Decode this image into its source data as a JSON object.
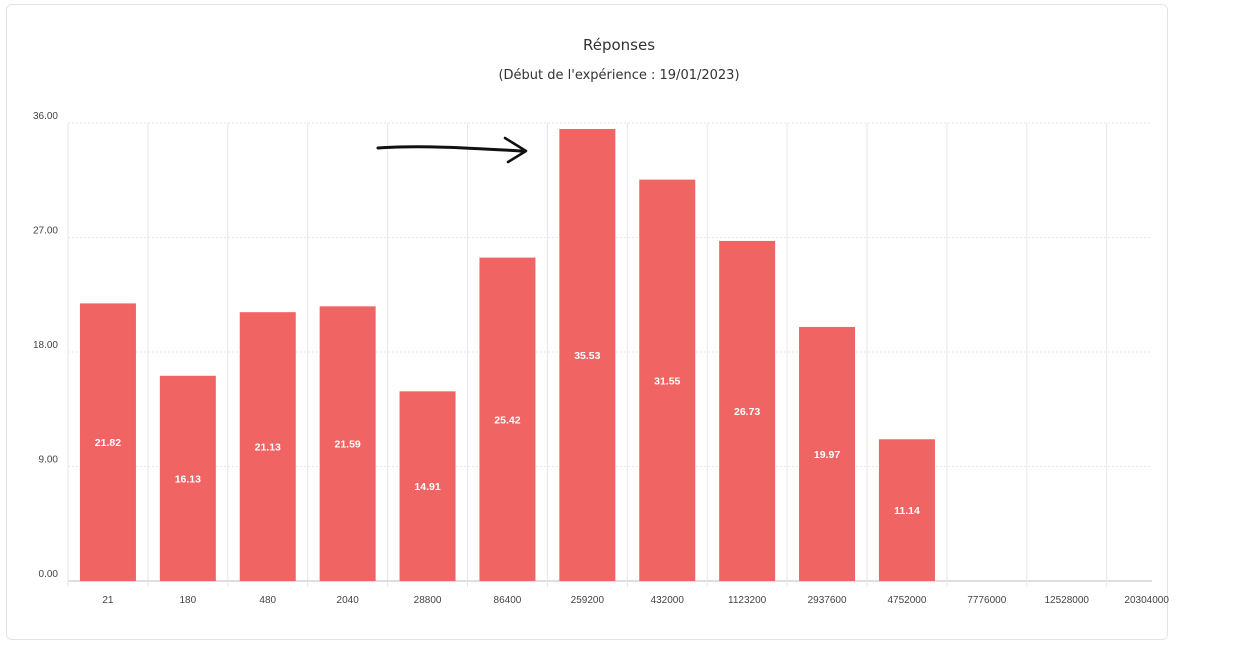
{
  "chart_data": {
    "type": "bar",
    "title": "Réponses",
    "subtitle": "(Début de l'expérience : 19/01/2023)",
    "xlabel": "",
    "ylabel": "",
    "ylim": [
      0,
      36
    ],
    "yticks": [
      "0.00",
      "9.00",
      "18.00",
      "27.00",
      "36.00"
    ],
    "ytick_values": [
      0,
      9,
      18,
      27,
      36
    ],
    "categories": [
      "21",
      "180",
      "480",
      "2040",
      "28800",
      "86400",
      "259200",
      "432000",
      "1123200",
      "2937600",
      "4752000",
      "7776000",
      "12528000",
      "20304000"
    ],
    "values": [
      21.82,
      16.13,
      21.13,
      21.59,
      14.91,
      25.42,
      35.53,
      31.55,
      26.73,
      19.97,
      11.14,
      null,
      null,
      null
    ],
    "data_labels": [
      "21.82",
      "16.13",
      "21.13",
      "21.59",
      "14.91",
      "25.42",
      "35.53",
      "31.55",
      "26.73",
      "19.97",
      "11.14",
      "",
      "",
      ""
    ],
    "grid": true,
    "bar_color": "#f06464",
    "annotation": "hand-drawn-arrow"
  }
}
